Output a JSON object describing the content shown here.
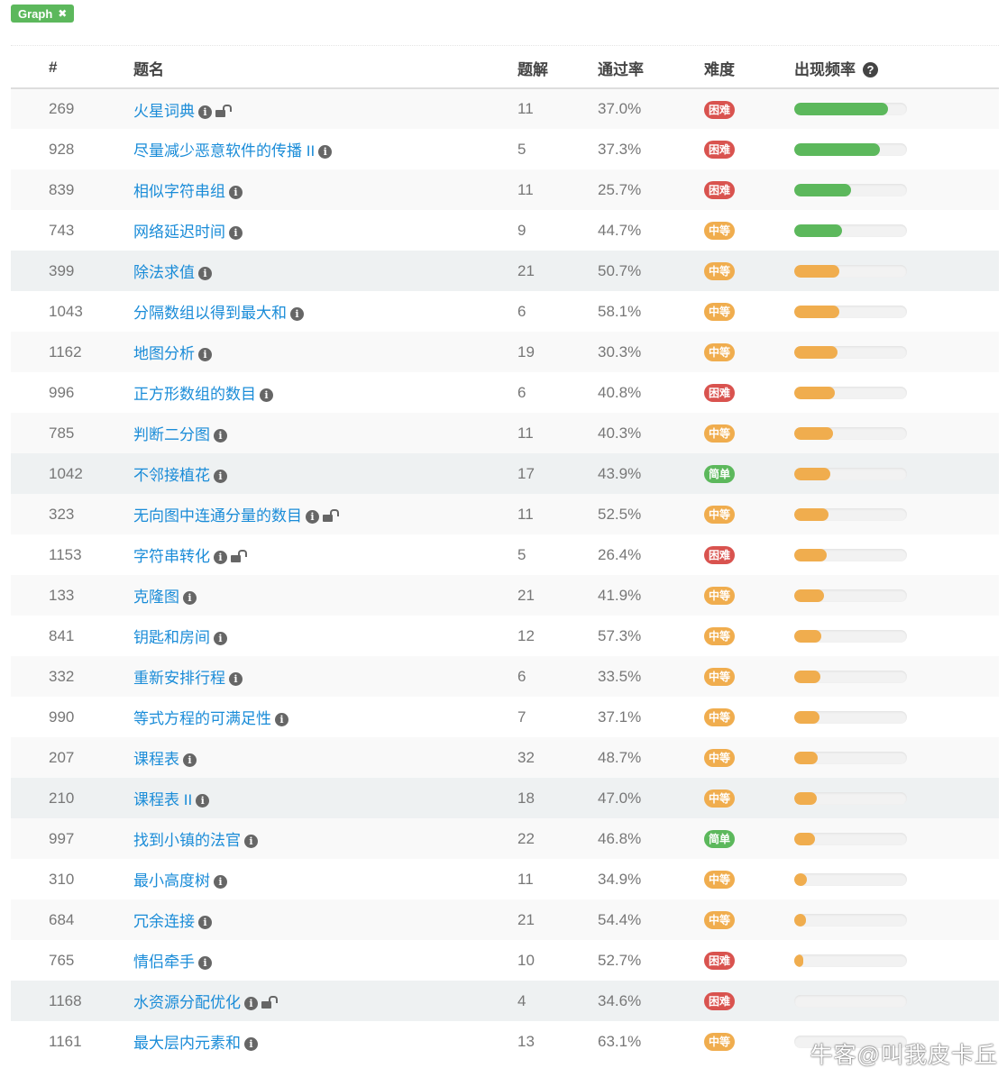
{
  "filter_tag": {
    "label": "Graph",
    "close": "✖"
  },
  "header": {
    "num": "#",
    "title": "题名",
    "solutions": "题解",
    "acceptance": "通过率",
    "difficulty": "难度",
    "frequency": "出现频率",
    "help_icon": "?"
  },
  "colors": {
    "困难": "#d9534f",
    "中等": "#f0ad4e",
    "简单": "#5cb85c",
    "freq_high": "#5cb85c",
    "freq_mid": "#f0ad4e"
  },
  "rows": [
    {
      "id": "269",
      "title": "火星词典",
      "locked": true,
      "solutions": "11",
      "acceptance": "37.0%",
      "difficulty": "困难",
      "frequency": 83
    },
    {
      "id": "928",
      "title": "尽量减少恶意软件的传播 II",
      "locked": false,
      "solutions": "5",
      "acceptance": "37.3%",
      "difficulty": "困难",
      "frequency": 76
    },
    {
      "id": "839",
      "title": "相似字符串组",
      "locked": false,
      "solutions": "11",
      "acceptance": "25.7%",
      "difficulty": "困难",
      "frequency": 50
    },
    {
      "id": "743",
      "title": "网络延迟时间",
      "locked": false,
      "solutions": "9",
      "acceptance": "44.7%",
      "difficulty": "中等",
      "frequency": 42
    },
    {
      "id": "399",
      "title": "除法求值",
      "locked": false,
      "solutions": "21",
      "acceptance": "50.7%",
      "difficulty": "中等",
      "frequency": 40,
      "highlighted": true
    },
    {
      "id": "1043",
      "title": "分隔数组以得到最大和",
      "locked": false,
      "solutions": "6",
      "acceptance": "58.1%",
      "difficulty": "中等",
      "frequency": 40
    },
    {
      "id": "1162",
      "title": "地图分析",
      "locked": false,
      "solutions": "19",
      "acceptance": "30.3%",
      "difficulty": "中等",
      "frequency": 38
    },
    {
      "id": "996",
      "title": "正方形数组的数目",
      "locked": false,
      "solutions": "6",
      "acceptance": "40.8%",
      "difficulty": "困难",
      "frequency": 36
    },
    {
      "id": "785",
      "title": "判断二分图",
      "locked": false,
      "solutions": "11",
      "acceptance": "40.3%",
      "difficulty": "中等",
      "frequency": 34
    },
    {
      "id": "1042",
      "title": "不邻接植花",
      "locked": false,
      "solutions": "17",
      "acceptance": "43.9%",
      "difficulty": "简单",
      "frequency": 32,
      "highlighted": true
    },
    {
      "id": "323",
      "title": "无向图中连通分量的数目",
      "locked": true,
      "solutions": "11",
      "acceptance": "52.5%",
      "difficulty": "中等",
      "frequency": 30
    },
    {
      "id": "1153",
      "title": "字符串转化",
      "locked": true,
      "solutions": "5",
      "acceptance": "26.4%",
      "difficulty": "困难",
      "frequency": 29
    },
    {
      "id": "133",
      "title": "克隆图",
      "locked": false,
      "solutions": "21",
      "acceptance": "41.9%",
      "difficulty": "中等",
      "frequency": 26
    },
    {
      "id": "841",
      "title": "钥匙和房间",
      "locked": false,
      "solutions": "12",
      "acceptance": "57.3%",
      "difficulty": "中等",
      "frequency": 24
    },
    {
      "id": "332",
      "title": "重新安排行程",
      "locked": false,
      "solutions": "6",
      "acceptance": "33.5%",
      "difficulty": "中等",
      "frequency": 23
    },
    {
      "id": "990",
      "title": "等式方程的可满足性",
      "locked": false,
      "solutions": "7",
      "acceptance": "37.1%",
      "difficulty": "中等",
      "frequency": 22
    },
    {
      "id": "207",
      "title": "课程表",
      "locked": false,
      "solutions": "32",
      "acceptance": "48.7%",
      "difficulty": "中等",
      "frequency": 21
    },
    {
      "id": "210",
      "title": "课程表 II",
      "locked": false,
      "solutions": "18",
      "acceptance": "47.0%",
      "difficulty": "中等",
      "frequency": 20,
      "highlighted": true
    },
    {
      "id": "997",
      "title": "找到小镇的法官",
      "locked": false,
      "solutions": "22",
      "acceptance": "46.8%",
      "difficulty": "简单",
      "frequency": 18
    },
    {
      "id": "310",
      "title": "最小高度树",
      "locked": false,
      "solutions": "11",
      "acceptance": "34.9%",
      "difficulty": "中等",
      "frequency": 11
    },
    {
      "id": "684",
      "title": "冗余连接",
      "locked": false,
      "solutions": "21",
      "acceptance": "54.4%",
      "difficulty": "中等",
      "frequency": 10
    },
    {
      "id": "765",
      "title": "情侣牵手",
      "locked": false,
      "solutions": "10",
      "acceptance": "52.7%",
      "difficulty": "困难",
      "frequency": 8
    },
    {
      "id": "1168",
      "title": "水资源分配优化",
      "locked": true,
      "solutions": "4",
      "acceptance": "34.6%",
      "difficulty": "困难",
      "frequency": 0,
      "highlighted": true
    },
    {
      "id": "1161",
      "title": "最大层内元素和",
      "locked": false,
      "solutions": "13",
      "acceptance": "63.1%",
      "difficulty": "中等",
      "frequency": 0
    }
  ],
  "watermark": "牛客@叫我皮卡丘"
}
